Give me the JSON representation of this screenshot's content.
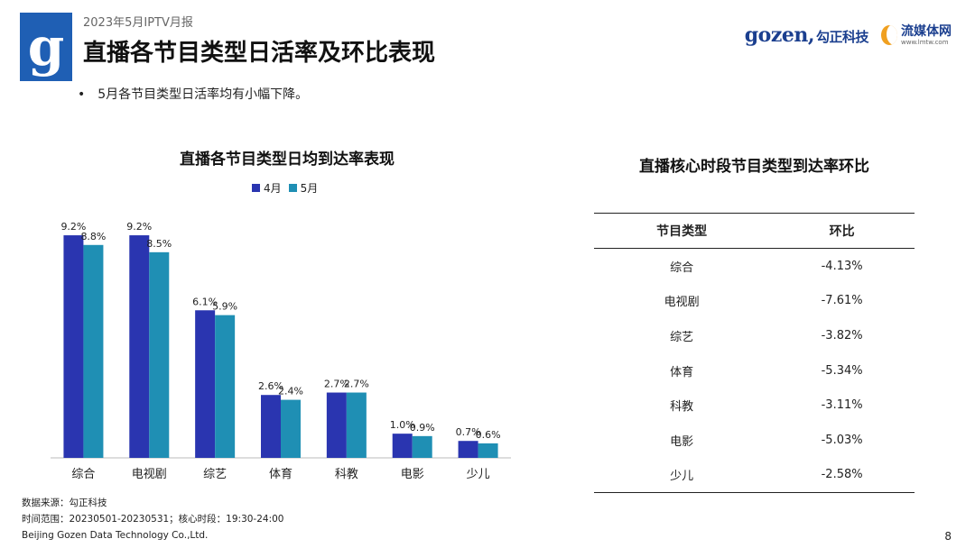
{
  "header": {
    "report_label": "2023年5月IPTV月报",
    "title": "直播各节目类型日活率及环比表现",
    "logo_letter": "g",
    "brand_gozen": "gozen,",
    "brand_gozen_cn": "勾正科技",
    "brand_lm_cn": "流媒体网",
    "brand_lm_url": "www.lmtw.com"
  },
  "bullet": "5月各节目类型日活率均有小幅下降。",
  "chart_data": {
    "type": "bar",
    "title": "直播各节目类型日均到达率表现",
    "categories": [
      "综合",
      "电视剧",
      "综艺",
      "体育",
      "科教",
      "电影",
      "少儿"
    ],
    "series": [
      {
        "name": "4月",
        "values": [
          9.2,
          9.2,
          6.1,
          2.6,
          2.7,
          1.0,
          0.7
        ],
        "labels": [
          "9.2%",
          "9.2%",
          "6.1%",
          "2.6%",
          "2.7%",
          "1.0%",
          "0.7%"
        ],
        "color": "#2a35b0"
      },
      {
        "name": "5月",
        "values": [
          8.8,
          8.5,
          5.9,
          2.4,
          2.7,
          0.9,
          0.6
        ],
        "labels": [
          "8.8%",
          "8.5%",
          "5.9%",
          "2.4%",
          "2.7%",
          "0.9%",
          "0.6%"
        ],
        "color": "#1f8fb4"
      }
    ],
    "ylim": [
      0,
      9.5
    ],
    "grid": false,
    "legend": "top"
  },
  "table": {
    "title": "直播核心时段节目类型到达率环比",
    "headers": [
      "节目类型",
      "环比"
    ],
    "rows": [
      [
        "综合",
        "-4.13%"
      ],
      [
        "电视剧",
        "-7.61%"
      ],
      [
        "综艺",
        "-3.82%"
      ],
      [
        "体育",
        "-5.34%"
      ],
      [
        "科教",
        "-3.11%"
      ],
      [
        "电影",
        "-5.03%"
      ],
      [
        "少儿",
        "-2.58%"
      ]
    ]
  },
  "footer": {
    "source": "数据来源：勾正科技",
    "period": "时间范围：20230501-20230531；核心时段：19:30-24:00",
    "company": "Beijing Gozen Data Technology Co.,Ltd."
  },
  "page_number": "8"
}
